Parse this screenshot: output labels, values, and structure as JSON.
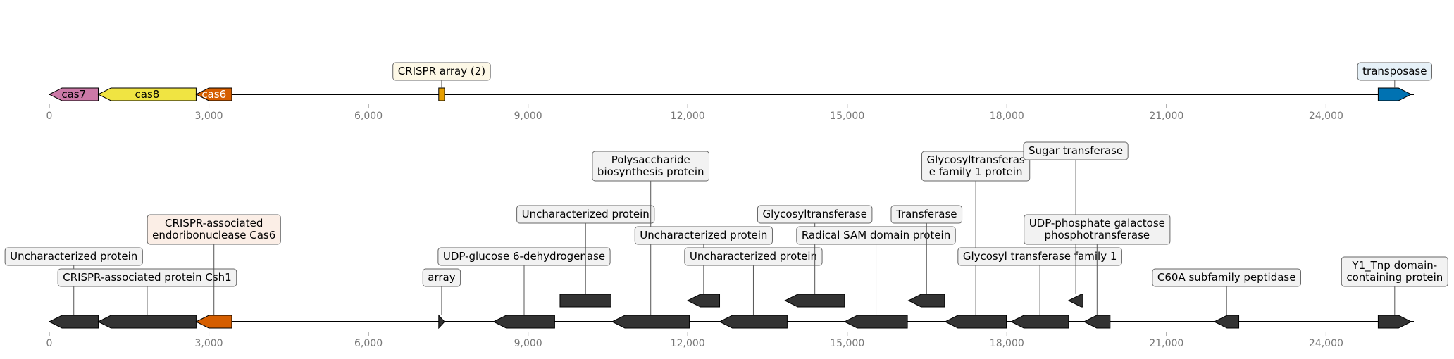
{
  "tracks": [
    {
      "id": "top",
      "axis": {
        "min": 0,
        "max": 25650,
        "ticks": [
          0,
          3000,
          6000,
          9000,
          12000,
          15000,
          18000,
          21000,
          24000
        ],
        "tick_labels": [
          "0",
          "3,000",
          "6,000",
          "9,000",
          "12,000",
          "15,000",
          "18,000",
          "21,000",
          "24,000"
        ]
      },
      "features": [
        {
          "label": "cas7",
          "start": 0,
          "end": 920,
          "strand": -1,
          "color": "#cc79a7",
          "label_color": "#000000",
          "inline": true
        },
        {
          "label": "cas8",
          "start": 920,
          "end": 2760,
          "strand": -1,
          "color": "#f0e442",
          "label_color": "#000000",
          "inline": true
        },
        {
          "label": "cas6",
          "start": 2760,
          "end": 3430,
          "strand": -1,
          "color": "#d55e00",
          "label_color": "#ffffff",
          "inline": true
        },
        {
          "label": "CRISPR array (2)",
          "start": 7320,
          "end": 7430,
          "strand": 0,
          "color": "#e69f00",
          "box_color": "#fdf8e6",
          "inline": false,
          "tier": 0
        },
        {
          "label": "transposase",
          "start": 24980,
          "end": 25600,
          "strand": 1,
          "color": "#0072b2",
          "box_color": "#e6f1f8",
          "inline": false,
          "tier": 0
        }
      ]
    },
    {
      "id": "bottom",
      "axis": {
        "min": 0,
        "max": 25650,
        "ticks": [
          0,
          3000,
          6000,
          9000,
          12000,
          15000,
          18000,
          21000,
          24000
        ],
        "tick_labels": [
          "0",
          "3,000",
          "6,000",
          "9,000",
          "12,000",
          "15,000",
          "18,000",
          "21,000",
          "24,000"
        ]
      },
      "features": [
        {
          "label": "Uncharacterized protein",
          "start": 0,
          "end": 920,
          "strand": -1,
          "color": "#333333",
          "box_color": "#f2f2f2",
          "tier": 2,
          "level": 0
        },
        {
          "label": "CRISPR-associated protein Csh1",
          "start": 920,
          "end": 2760,
          "strand": -1,
          "color": "#333333",
          "box_color": "#f2f2f2",
          "tier": 1,
          "level": 0
        },
        {
          "label": "CRISPR-associated\nendoribonuclease Cas6",
          "start": 2760,
          "end": 3430,
          "strand": -1,
          "color": "#d55e00",
          "box_color": "#fbeee6",
          "tier": 3,
          "level": 0
        },
        {
          "label": "array",
          "start": 7320,
          "end": 7430,
          "strand": 1,
          "color": "#333333",
          "box_color": "#f2f2f2",
          "tier": 1,
          "level": 0
        },
        {
          "label": "UDP-glucose 6-dehydrogenase",
          "start": 8350,
          "end": 9500,
          "strand": -1,
          "color": "#333333",
          "box_color": "#f2f2f2",
          "tier": 2,
          "level": 0
        },
        {
          "label": "Uncharacterized protein",
          "start": 9600,
          "end": 10560,
          "strand": 0,
          "color": "#333333",
          "box_color": "#f2f2f2",
          "tier": 4,
          "level": 1
        },
        {
          "label": "Polysaccharide\nbiosynthesis protein",
          "start": 10580,
          "end": 12030,
          "strand": -1,
          "color": "#333333",
          "box_color": "#f2f2f2",
          "tier": 6,
          "level": 0
        },
        {
          "label": "Uncharacterized protein",
          "start": 12000,
          "end": 12600,
          "strand": -1,
          "color": "#333333",
          "box_color": "#f2f2f2",
          "tier": 3,
          "level": 1
        },
        {
          "label": "Uncharacterized protein",
          "start": 12600,
          "end": 13870,
          "strand": -1,
          "color": "#333333",
          "box_color": "#f2f2f2",
          "tier": 2,
          "level": 0
        },
        {
          "label": "Glycosyltransferase",
          "start": 13830,
          "end": 14950,
          "strand": -1,
          "color": "#333333",
          "box_color": "#f2f2f2",
          "tier": 4,
          "level": 1
        },
        {
          "label": "Radical SAM domain protein",
          "start": 14950,
          "end": 16130,
          "strand": -1,
          "color": "#333333",
          "box_color": "#f2f2f2",
          "tier": 3,
          "level": 0
        },
        {
          "label": "Transferase",
          "start": 16150,
          "end": 16830,
          "strand": -1,
          "color": "#333333",
          "box_color": "#f2f2f2",
          "tier": 4,
          "level": 1
        },
        {
          "label": "Glycosyltransferas\ne family 1 protein",
          "start": 16840,
          "end": 17990,
          "strand": -1,
          "color": "#333333",
          "box_color": "#f2f2f2",
          "tier": 6,
          "level": 0
        },
        {
          "label": "Glycosyl transferase family 1",
          "start": 18080,
          "end": 19160,
          "strand": -1,
          "color": "#333333",
          "box_color": "#f2f2f2",
          "tier": 2,
          "level": 0
        },
        {
          "label": "Sugar transferase",
          "start": 19160,
          "end": 19430,
          "strand": -1,
          "color": "#333333",
          "box_color": "#f2f2f2",
          "tier": 7,
          "level": 1
        },
        {
          "label": "UDP-phosphate galactose\nphosphotransferase",
          "start": 19450,
          "end": 19940,
          "strand": -1,
          "color": "#333333",
          "box_color": "#f2f2f2",
          "tier": 3,
          "level": 0
        },
        {
          "label": "C60A subfamily peptidase",
          "start": 21900,
          "end": 22360,
          "strand": -1,
          "color": "#333333",
          "box_color": "#f2f2f2",
          "tier": 1,
          "level": 0
        },
        {
          "label": "Y1_Tnp domain-\ncontaining protein",
          "start": 24980,
          "end": 25600,
          "strand": 1,
          "color": "#333333",
          "box_color": "#f2f2f2",
          "tier": 1,
          "level": 0
        }
      ]
    }
  ]
}
